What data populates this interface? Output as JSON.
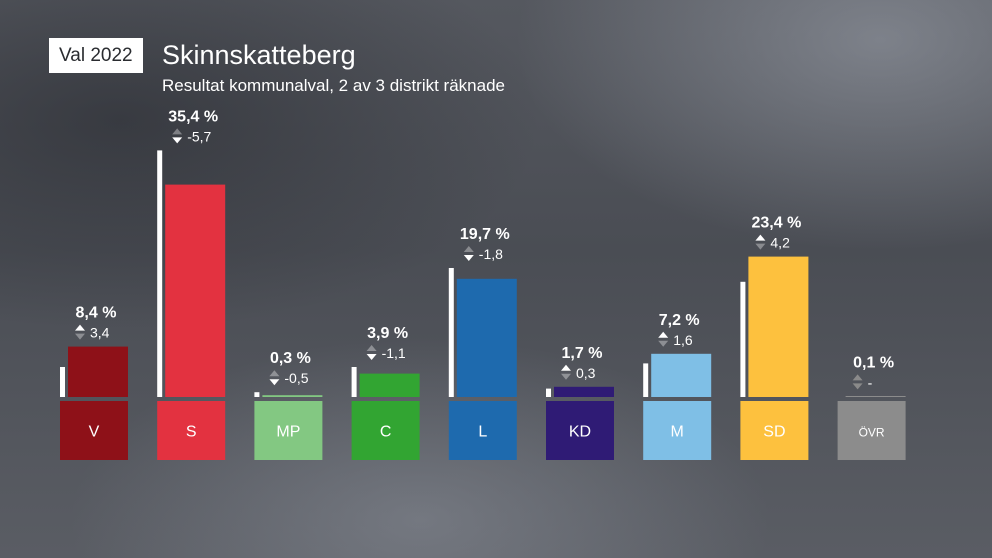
{
  "header": {
    "badge": "Val 2022",
    "title": "Skinnskatteberg",
    "subtitle": "Resultat kommunalval, 2 av 3 distrikt räknade"
  },
  "chart_data": {
    "type": "bar",
    "categories": [
      "V",
      "S",
      "MP",
      "C",
      "L",
      "KD",
      "M",
      "SD",
      "ÖVR"
    ],
    "values": [
      8.4,
      35.4,
      0.3,
      3.9,
      19.7,
      1.7,
      7.2,
      23.4,
      0.1
    ],
    "value_labels": [
      "8,4 %",
      "35,4 %",
      "0,3 %",
      "3,9 %",
      "19,7 %",
      "1,7 %",
      "7,2 %",
      "23,4 %",
      "0,1 %"
    ],
    "change_labels": [
      "3,4",
      "-5,7",
      "-0,5",
      "-1,1",
      "-1,8",
      "0,3",
      "1,6",
      "4,2",
      "-"
    ],
    "change": [
      3.4,
      -5.7,
      -0.5,
      -1.1,
      -1.8,
      0.3,
      1.6,
      4.2,
      null
    ],
    "previous_values": [
      5.0,
      41.1,
      0.8,
      5.0,
      21.5,
      1.4,
      5.6,
      19.2,
      null
    ],
    "colors": [
      "#8e1118",
      "#e33240",
      "#83c882",
      "#32a532",
      "#1e6aae",
      "#2f1b75",
      "#7fbfe6",
      "#fdc13e",
      "#8c8c8c"
    ],
    "ylim": [
      0,
      40
    ]
  }
}
